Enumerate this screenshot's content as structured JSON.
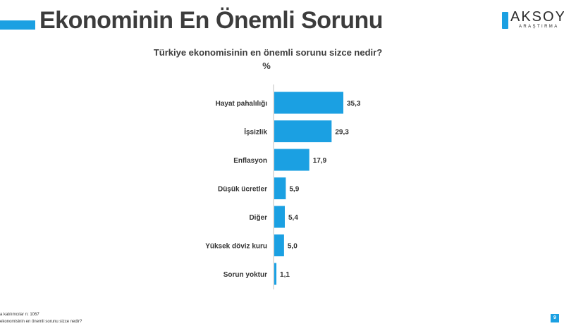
{
  "header": {
    "title": "Ekonominin En Önemli Sorunu",
    "accent_color": "#1ba0e2"
  },
  "logo": {
    "badge_icon": "brand-badge-icon",
    "name": "AKSOY",
    "subtitle": "ARAŞTIRMA"
  },
  "chart_data": {
    "type": "bar",
    "orientation": "horizontal",
    "title": "Türkiye ekonomisinin en önemli sorunu sizce nedir?",
    "subtitle": "%",
    "categories": [
      "Hayat pahalılığı",
      "İşsizlik",
      "Enflasyon",
      "Düşük ücretler",
      "Diğer",
      "Yüksek döviz kuru",
      "Sorun yoktur"
    ],
    "values": [
      35.3,
      29.3,
      17.9,
      5.9,
      5.4,
      5.0,
      1.1
    ],
    "value_labels": [
      "35,3",
      "29,3",
      "17,9",
      "5,9",
      "5,4",
      "5,0",
      "1,1"
    ],
    "xlim": [
      0,
      40
    ],
    "bar_color": "#1ba0e2",
    "grid": false,
    "legend": "none"
  },
  "footnotes": [
    "a katılımcılar n: 1067",
    "ekonomisinin en önemli sorunu sizce nedir?"
  ],
  "page_number": "9"
}
